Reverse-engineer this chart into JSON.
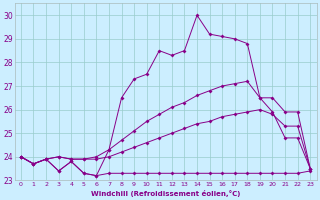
{
  "xlabel": "Windchill (Refroidissement éolien,°C)",
  "background_color": "#cceeff",
  "line_color": "#880088",
  "grid_color": "#99cccc",
  "xlim": [
    -0.5,
    23.5
  ],
  "ylim": [
    23.0,
    30.5
  ],
  "yticks": [
    23,
    24,
    25,
    26,
    27,
    28,
    29,
    30
  ],
  "xticks": [
    0,
    1,
    2,
    3,
    4,
    5,
    6,
    7,
    8,
    9,
    10,
    11,
    12,
    13,
    14,
    15,
    16,
    17,
    18,
    19,
    20,
    21,
    22,
    23
  ],
  "series1_y": [
    24.0,
    23.7,
    23.9,
    23.4,
    23.8,
    23.3,
    23.2,
    23.3,
    23.3,
    23.3,
    23.3,
    23.3,
    23.3,
    23.3,
    23.3,
    23.3,
    23.3,
    23.3,
    23.3,
    23.3,
    23.3,
    23.3,
    23.3,
    23.4
  ],
  "series2_y": [
    24.0,
    23.7,
    23.9,
    24.0,
    23.9,
    23.9,
    23.9,
    24.0,
    24.2,
    24.4,
    24.6,
    24.8,
    25.0,
    25.2,
    25.4,
    25.5,
    25.7,
    25.8,
    25.9,
    26.0,
    25.8,
    25.3,
    25.3,
    23.5
  ],
  "series3_y": [
    24.0,
    23.7,
    23.9,
    24.0,
    23.9,
    23.9,
    24.0,
    24.3,
    24.7,
    25.1,
    25.5,
    25.8,
    26.1,
    26.3,
    26.6,
    26.8,
    27.0,
    27.1,
    27.2,
    26.5,
    26.5,
    25.9,
    25.9,
    23.5
  ],
  "series4_y": [
    24.0,
    23.7,
    23.9,
    23.4,
    23.8,
    23.3,
    23.2,
    24.3,
    26.5,
    27.3,
    27.5,
    28.5,
    28.3,
    28.5,
    30.0,
    29.2,
    29.1,
    29.0,
    28.8,
    26.5,
    25.9,
    24.8,
    24.8,
    23.5
  ]
}
